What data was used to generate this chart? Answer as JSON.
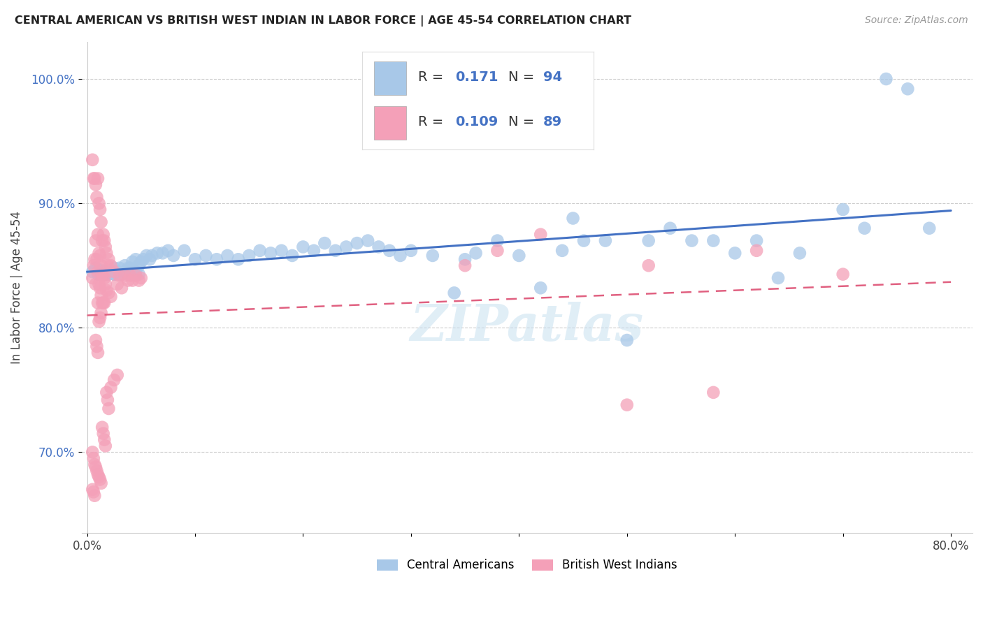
{
  "title": "CENTRAL AMERICAN VS BRITISH WEST INDIAN IN LABOR FORCE | AGE 45-54 CORRELATION CHART",
  "source": "Source: ZipAtlas.com",
  "ylabel": "In Labor Force | Age 45-54",
  "xlim": [
    -0.005,
    0.82
  ],
  "ylim": [
    0.635,
    1.03
  ],
  "xticks": [
    0.0,
    0.1,
    0.2,
    0.3,
    0.4,
    0.5,
    0.6,
    0.7,
    0.8
  ],
  "yticks": [
    0.7,
    0.8,
    0.9,
    1.0
  ],
  "xtick_labels": [
    "0.0%",
    "",
    "",
    "",
    "",
    "",
    "",
    "",
    "80.0%"
  ],
  "ytick_labels": [
    "70.0%",
    "80.0%",
    "90.0%",
    "100.0%"
  ],
  "color_blue": "#a8c8e8",
  "color_pink": "#f4a0b8",
  "color_blue_text": "#4472c4",
  "trendline_blue": "#4472c4",
  "trendline_pink": "#e06080",
  "background": "#ffffff",
  "blue_x": [
    0.005,
    0.008,
    0.01,
    0.01,
    0.012,
    0.013,
    0.015,
    0.015,
    0.016,
    0.017,
    0.018,
    0.02,
    0.022,
    0.025,
    0.025,
    0.028,
    0.03,
    0.032,
    0.035,
    0.038,
    0.04,
    0.042,
    0.045,
    0.048,
    0.05,
    0.052,
    0.055,
    0.058,
    0.06,
    0.065,
    0.07,
    0.075,
    0.08,
    0.09,
    0.1,
    0.11,
    0.12,
    0.13,
    0.14,
    0.15,
    0.16,
    0.17,
    0.18,
    0.19,
    0.2,
    0.21,
    0.22,
    0.23,
    0.24,
    0.25,
    0.26,
    0.27,
    0.28,
    0.29,
    0.3,
    0.32,
    0.34,
    0.35,
    0.36,
    0.38,
    0.4,
    0.42,
    0.44,
    0.45,
    0.46,
    0.48,
    0.5,
    0.52,
    0.54,
    0.56,
    0.58,
    0.6,
    0.62,
    0.64,
    0.66,
    0.7,
    0.72,
    0.74,
    0.76,
    0.78,
    0.012,
    0.015,
    0.018,
    0.02,
    0.022,
    0.025,
    0.028,
    0.03,
    0.035,
    0.038,
    0.04,
    0.042,
    0.045,
    0.048
  ],
  "blue_y": [
    0.845,
    0.848,
    0.843,
    0.847,
    0.845,
    0.843,
    0.846,
    0.843,
    0.845,
    0.843,
    0.845,
    0.843,
    0.845,
    0.848,
    0.843,
    0.845,
    0.848,
    0.843,
    0.85,
    0.848,
    0.848,
    0.853,
    0.855,
    0.85,
    0.853,
    0.855,
    0.858,
    0.855,
    0.858,
    0.86,
    0.86,
    0.862,
    0.858,
    0.862,
    0.855,
    0.858,
    0.855,
    0.858,
    0.855,
    0.858,
    0.862,
    0.86,
    0.862,
    0.858,
    0.865,
    0.862,
    0.868,
    0.862,
    0.865,
    0.868,
    0.87,
    0.865,
    0.862,
    0.858,
    0.862,
    0.858,
    0.828,
    0.855,
    0.86,
    0.87,
    0.858,
    0.832,
    0.862,
    0.888,
    0.87,
    0.87,
    0.79,
    0.87,
    0.88,
    0.87,
    0.87,
    0.86,
    0.87,
    0.84,
    0.86,
    0.895,
    0.88,
    1.0,
    0.992,
    0.88,
    0.843,
    0.845,
    0.845,
    0.843,
    0.845,
    0.843,
    0.845,
    0.843,
    0.845,
    0.843,
    0.845,
    0.843,
    0.845,
    0.843
  ],
  "pink_x": [
    0.005,
    0.005,
    0.006,
    0.006,
    0.007,
    0.007,
    0.008,
    0.008,
    0.008,
    0.009,
    0.009,
    0.01,
    0.01,
    0.01,
    0.01,
    0.011,
    0.011,
    0.011,
    0.012,
    0.012,
    0.012,
    0.013,
    0.013,
    0.013,
    0.014,
    0.014,
    0.014,
    0.015,
    0.015,
    0.015,
    0.016,
    0.016,
    0.016,
    0.017,
    0.017,
    0.018,
    0.018,
    0.019,
    0.02,
    0.02,
    0.022,
    0.022,
    0.025,
    0.028,
    0.03,
    0.032,
    0.035,
    0.038,
    0.04,
    0.042,
    0.045,
    0.048,
    0.05,
    0.005,
    0.006,
    0.007,
    0.008,
    0.009,
    0.01,
    0.011,
    0.012,
    0.013,
    0.014,
    0.015,
    0.016,
    0.017,
    0.018,
    0.019,
    0.02,
    0.022,
    0.025,
    0.028,
    0.35,
    0.38,
    0.42,
    0.5,
    0.52,
    0.58,
    0.62,
    0.7,
    0.005,
    0.006,
    0.007,
    0.008,
    0.009,
    0.01,
    0.011,
    0.012,
    0.013
  ],
  "pink_y": [
    0.935,
    0.84,
    0.92,
    0.85,
    0.92,
    0.855,
    0.915,
    0.87,
    0.835,
    0.905,
    0.855,
    0.92,
    0.875,
    0.845,
    0.82,
    0.9,
    0.86,
    0.835,
    0.895,
    0.858,
    0.832,
    0.885,
    0.85,
    0.826,
    0.87,
    0.843,
    0.82,
    0.875,
    0.842,
    0.82,
    0.87,
    0.84,
    0.82,
    0.865,
    0.835,
    0.86,
    0.83,
    0.85,
    0.855,
    0.828,
    0.85,
    0.825,
    0.845,
    0.835,
    0.842,
    0.832,
    0.842,
    0.838,
    0.842,
    0.838,
    0.842,
    0.838,
    0.84,
    0.7,
    0.695,
    0.69,
    0.688,
    0.685,
    0.682,
    0.68,
    0.678,
    0.675,
    0.72,
    0.715,
    0.71,
    0.705,
    0.748,
    0.742,
    0.735,
    0.752,
    0.758,
    0.762,
    0.85,
    0.862,
    0.875,
    0.738,
    0.85,
    0.748,
    0.862,
    0.843,
    0.67,
    0.668,
    0.665,
    0.79,
    0.785,
    0.78,
    0.805,
    0.808,
    0.812
  ]
}
